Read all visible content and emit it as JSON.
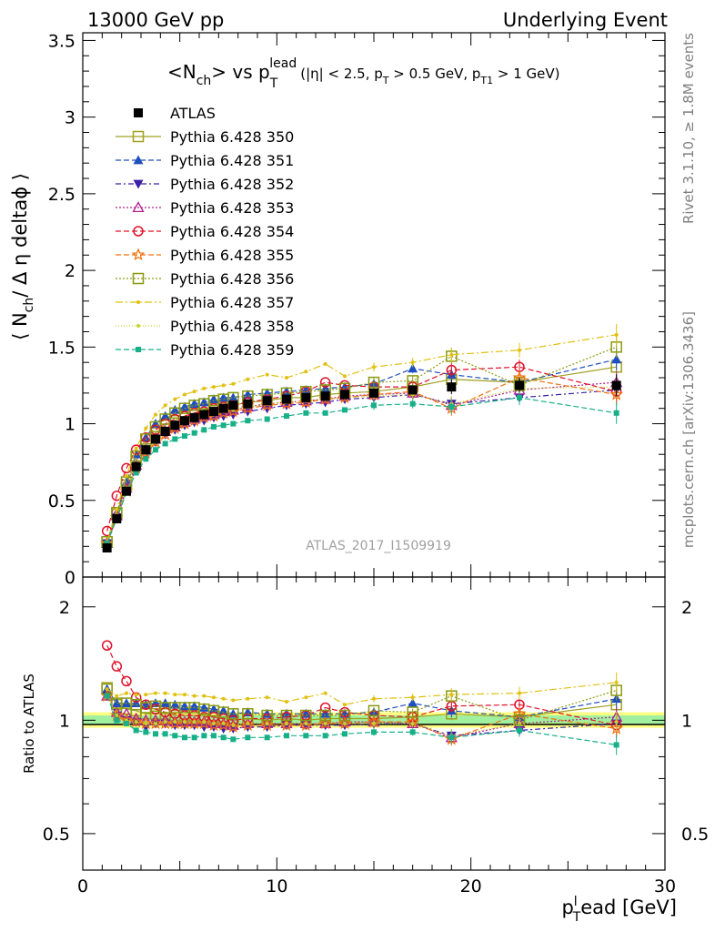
{
  "header": {
    "left": "13000 GeV pp",
    "right": "Underlying Event"
  },
  "side_labels": {
    "rivet": "Rivet 3.1.10, ≥ 1.8M events",
    "mcplots": "mcplots.cern.ch [arXiv:1306.3436]"
  },
  "watermark": "ATLAS_2017_I1509919",
  "chart_data": [
    {
      "type": "scatter",
      "panel": "main",
      "title": {
        "lhs": "<N",
        "lhs_sub": "ch",
        "mid": "> vs p",
        "sup": "lead",
        "sub": "T",
        "cuts_a": "(|η| < 2.5, p",
        "cuts_b_sub": "T",
        "cuts_c": " > 0.5 GeV, p",
        "cuts_d_sub": "T1",
        "cuts_e": " > 1 GeV)"
      },
      "ylabel": {
        "open": "⟨ N",
        "sub": "ch",
        "rest": "/ Δ η deltaϕ ⟩"
      },
      "xlim": [
        0,
        30
      ],
      "ylim": [
        0,
        3.55
      ],
      "yticks": [
        "0",
        "0.5",
        "1",
        "1.5",
        "2",
        "2.5",
        "3",
        "3.5"
      ],
      "legend_position": "top-left",
      "series": [
        {
          "name": "ATLAS",
          "color": "#000000",
          "marker": "square-filled",
          "dash": "none",
          "x": [
            1.25,
            1.75,
            2.25,
            2.75,
            3.25,
            3.75,
            4.25,
            4.75,
            5.25,
            5.75,
            6.25,
            6.75,
            7.25,
            7.75,
            8.5,
            9.5,
            10.5,
            11.5,
            12.5,
            13.5,
            15,
            17,
            19,
            22.5,
            27.5
          ],
          "y": [
            0.19,
            0.38,
            0.56,
            0.72,
            0.83,
            0.9,
            0.95,
            0.99,
            1.02,
            1.04,
            1.06,
            1.08,
            1.1,
            1.12,
            1.13,
            1.15,
            1.16,
            1.17,
            1.18,
            1.19,
            1.2,
            1.22,
            1.24,
            1.25,
            1.25
          ]
        },
        {
          "name": "Pythia 6.428 350",
          "color": "#a0a020",
          "marker": "square-open",
          "dash": "solid",
          "x": [
            1.25,
            1.75,
            2.25,
            2.75,
            3.25,
            3.75,
            4.25,
            4.75,
            5.25,
            5.75,
            6.25,
            6.75,
            7.25,
            7.75,
            8.5,
            9.5,
            10.5,
            11.5,
            12.5,
            13.5,
            15,
            17,
            19,
            22.5,
            27.5
          ],
          "y": [
            0.23,
            0.41,
            0.6,
            0.76,
            0.86,
            0.94,
            0.99,
            1.02,
            1.05,
            1.07,
            1.09,
            1.1,
            1.11,
            1.12,
            1.14,
            1.15,
            1.17,
            1.17,
            1.19,
            1.2,
            1.21,
            1.24,
            1.29,
            1.27,
            1.37
          ]
        },
        {
          "name": "Pythia 6.428 351",
          "color": "#1f4fbf",
          "marker": "triangle-up-filled",
          "dash": "6,3",
          "x": [
            1.25,
            1.75,
            2.25,
            2.75,
            3.25,
            3.75,
            4.25,
            4.75,
            5.25,
            5.75,
            6.25,
            6.75,
            7.25,
            7.75,
            8.5,
            9.5,
            10.5,
            11.5,
            12.5,
            13.5,
            15,
            17,
            19,
            22.5,
            27.5
          ],
          "y": [
            0.23,
            0.42,
            0.62,
            0.8,
            0.91,
            1.0,
            1.05,
            1.09,
            1.11,
            1.13,
            1.14,
            1.16,
            1.17,
            1.17,
            1.19,
            1.2,
            1.21,
            1.22,
            1.23,
            1.24,
            1.26,
            1.36,
            1.32,
            1.27,
            1.42
          ]
        },
        {
          "name": "Pythia 6.428 352",
          "color": "#3b1fa8",
          "marker": "triangle-down-filled",
          "dash": "6,3,2,3",
          "x": [
            1.25,
            1.75,
            2.25,
            2.75,
            3.25,
            3.75,
            4.25,
            4.75,
            5.25,
            5.75,
            6.25,
            6.75,
            7.25,
            7.75,
            8.5,
            9.5,
            10.5,
            11.5,
            12.5,
            13.5,
            15,
            17,
            19,
            22.5,
            27.5
          ],
          "y": [
            0.22,
            0.39,
            0.56,
            0.71,
            0.8,
            0.88,
            0.93,
            0.96,
            0.99,
            1.01,
            1.02,
            1.04,
            1.05,
            1.06,
            1.08,
            1.1,
            1.12,
            1.13,
            1.14,
            1.16,
            1.17,
            1.19,
            1.13,
            1.17,
            1.22
          ]
        },
        {
          "name": "Pythia 6.428 353",
          "color": "#b0208f",
          "marker": "triangle-up-open",
          "dash": "2,2",
          "x": [
            1.25,
            1.75,
            2.25,
            2.75,
            3.25,
            3.75,
            4.25,
            4.75,
            5.25,
            5.75,
            6.25,
            6.75,
            7.25,
            7.75,
            8.5,
            9.5,
            10.5,
            11.5,
            12.5,
            13.5,
            15,
            17,
            19,
            22.5,
            27.5
          ],
          "y": [
            0.22,
            0.4,
            0.58,
            0.73,
            0.83,
            0.9,
            0.95,
            0.98,
            1.01,
            1.03,
            1.05,
            1.06,
            1.08,
            1.09,
            1.11,
            1.13,
            1.14,
            1.15,
            1.16,
            1.18,
            1.19,
            1.2,
            1.12,
            1.22,
            1.27
          ]
        },
        {
          "name": "Pythia 6.428 354",
          "color": "#e0102a",
          "marker": "circle-open",
          "dash": "6,3",
          "x": [
            1.25,
            1.75,
            2.25,
            2.75,
            3.25,
            3.75,
            4.25,
            4.75,
            5.25,
            5.75,
            6.25,
            6.75,
            7.25,
            7.75,
            8.5,
            9.5,
            10.5,
            11.5,
            12.5,
            13.5,
            15,
            17,
            19,
            22.5,
            27.5
          ],
          "y": [
            0.3,
            0.53,
            0.71,
            0.83,
            0.91,
            0.96,
            1.0,
            1.03,
            1.05,
            1.07,
            1.08,
            1.1,
            1.11,
            1.12,
            1.14,
            1.16,
            1.18,
            1.21,
            1.27,
            1.25,
            1.24,
            1.24,
            1.35,
            1.37,
            1.21
          ]
        },
        {
          "name": "Pythia 6.428 355",
          "color": "#f07010",
          "marker": "star-open",
          "dash": "6,3",
          "x": [
            1.25,
            1.75,
            2.25,
            2.75,
            3.25,
            3.75,
            4.25,
            4.75,
            5.25,
            5.75,
            6.25,
            6.75,
            7.25,
            7.75,
            8.5,
            9.5,
            10.5,
            11.5,
            12.5,
            13.5,
            15,
            17,
            19,
            22.5,
            27.5
          ],
          "y": [
            0.22,
            0.39,
            0.56,
            0.71,
            0.81,
            0.88,
            0.93,
            0.97,
            1.0,
            1.02,
            1.04,
            1.05,
            1.07,
            1.08,
            1.1,
            1.12,
            1.13,
            1.14,
            1.16,
            1.17,
            1.19,
            1.21,
            1.1,
            1.3,
            1.19
          ]
        },
        {
          "name": "Pythia 6.428 356",
          "color": "#8a9a10",
          "marker": "square-open",
          "dash": "2,2",
          "x": [
            1.25,
            1.75,
            2.25,
            2.75,
            3.25,
            3.75,
            4.25,
            4.75,
            5.25,
            5.75,
            6.25,
            6.75,
            7.25,
            7.75,
            8.5,
            9.5,
            10.5,
            11.5,
            12.5,
            13.5,
            15,
            17,
            19,
            22.5,
            27.5
          ],
          "y": [
            0.23,
            0.42,
            0.62,
            0.79,
            0.9,
            0.98,
            1.03,
            1.07,
            1.1,
            1.12,
            1.13,
            1.15,
            1.16,
            1.17,
            1.18,
            1.19,
            1.2,
            1.21,
            1.22,
            1.23,
            1.27,
            1.28,
            1.44,
            1.25,
            1.5
          ]
        },
        {
          "name": "Pythia 6.428 357",
          "color": "#e0c010",
          "marker": "dot",
          "dash": "8,3,2,3",
          "x": [
            1.25,
            1.75,
            2.25,
            2.75,
            3.25,
            3.75,
            4.25,
            4.75,
            5.25,
            5.75,
            6.25,
            6.75,
            7.25,
            7.75,
            8.5,
            9.5,
            10.5,
            11.5,
            12.5,
            13.5,
            15,
            17,
            19,
            22.5,
            27.5
          ],
          "y": [
            0.23,
            0.44,
            0.66,
            0.84,
            0.97,
            1.06,
            1.12,
            1.16,
            1.19,
            1.21,
            1.23,
            1.24,
            1.25,
            1.26,
            1.29,
            1.32,
            1.3,
            1.34,
            1.39,
            1.31,
            1.37,
            1.4,
            1.45,
            1.48,
            1.58
          ]
        },
        {
          "name": "Pythia 6.428 358",
          "color": "#c8d030",
          "marker": "dot",
          "dash": "1,2",
          "x": [
            1.25,
            1.75,
            2.25,
            2.75,
            3.25,
            3.75,
            4.25,
            4.75,
            5.25,
            5.75,
            6.25,
            6.75,
            7.25,
            7.75,
            8.5,
            9.5,
            10.5,
            11.5,
            12.5,
            13.5,
            15,
            17,
            19,
            22.5,
            27.5
          ],
          "y": [
            0.22,
            0.39,
            0.56,
            0.71,
            0.81,
            0.88,
            0.94,
            0.98,
            1.01,
            1.03,
            1.05,
            1.06,
            1.08,
            1.09,
            1.11,
            1.13,
            1.14,
            1.15,
            1.16,
            1.17,
            1.18,
            1.19,
            1.13,
            1.23,
            1.24
          ]
        },
        {
          "name": "Pythia 6.428 359",
          "color": "#18b088",
          "marker": "square-small",
          "dash": "6,3",
          "x": [
            1.25,
            1.75,
            2.25,
            2.75,
            3.25,
            3.75,
            4.25,
            4.75,
            5.25,
            5.75,
            6.25,
            6.75,
            7.25,
            7.75,
            8.5,
            9.5,
            10.5,
            11.5,
            12.5,
            13.5,
            15,
            17,
            19,
            22.5,
            27.5
          ],
          "y": [
            0.22,
            0.38,
            0.55,
            0.68,
            0.77,
            0.83,
            0.87,
            0.9,
            0.92,
            0.94,
            0.96,
            0.98,
            0.99,
            1.0,
            1.02,
            1.03,
            1.05,
            1.07,
            1.07,
            1.09,
            1.12,
            1.13,
            1.11,
            1.17,
            1.07
          ]
        }
      ]
    },
    {
      "type": "scatter",
      "panel": "ratio",
      "ylabel": "Ratio to ATLAS",
      "xlabel": {
        "main": "p",
        "sub": "T",
        "sup": "l",
        "rest": "ead [GeV]"
      },
      "xlim": [
        0,
        30
      ],
      "xticks": [
        "0",
        "10",
        "20",
        "30"
      ],
      "ylim": [
        0.4,
        2.4
      ],
      "log_y": true,
      "yticks": [
        "0.5",
        "1",
        "2"
      ],
      "ratio_series": [
        {
          "name": "Pythia 6.428 350",
          "y": [
            1.22,
            1.1,
            1.07,
            1.06,
            1.04,
            1.04,
            1.04,
            1.03,
            1.03,
            1.03,
            1.03,
            1.02,
            1.01,
            1.0,
            1.01,
            1.0,
            1.01,
            1.0,
            1.01,
            1.01,
            1.01,
            1.02,
            1.04,
            1.02,
            1.1
          ]
        },
        {
          "name": "Pythia 6.428 351",
          "y": [
            1.21,
            1.11,
            1.11,
            1.11,
            1.1,
            1.11,
            1.11,
            1.1,
            1.09,
            1.09,
            1.08,
            1.07,
            1.06,
            1.04,
            1.05,
            1.04,
            1.04,
            1.04,
            1.04,
            1.04,
            1.05,
            1.11,
            1.06,
            1.02,
            1.14
          ]
        },
        {
          "name": "Pythia 6.428 352",
          "y": [
            1.16,
            1.03,
            1.0,
            0.99,
            0.96,
            0.98,
            0.98,
            0.97,
            0.97,
            0.97,
            0.96,
            0.96,
            0.95,
            0.95,
            0.96,
            0.96,
            0.97,
            0.97,
            0.97,
            0.97,
            0.98,
            0.98,
            0.91,
            0.94,
            0.98
          ]
        },
        {
          "name": "Pythia 6.428 353",
          "y": [
            1.16,
            1.05,
            1.04,
            1.01,
            1.0,
            1.0,
            1.0,
            0.99,
            0.99,
            0.99,
            0.99,
            0.98,
            0.98,
            0.97,
            0.98,
            0.98,
            0.98,
            0.98,
            0.98,
            0.99,
            0.99,
            0.98,
            0.9,
            0.98,
            1.02
          ]
        },
        {
          "name": "Pythia 6.428 354",
          "y": [
            1.58,
            1.39,
            1.27,
            1.15,
            1.1,
            1.07,
            1.05,
            1.04,
            1.03,
            1.03,
            1.02,
            1.02,
            1.01,
            1.0,
            1.01,
            1.01,
            1.02,
            1.03,
            1.08,
            1.05,
            1.03,
            1.02,
            1.09,
            1.1,
            0.97
          ]
        },
        {
          "name": "Pythia 6.428 355",
          "y": [
            1.16,
            1.03,
            1.0,
            0.99,
            0.98,
            0.98,
            0.98,
            0.98,
            0.98,
            0.98,
            0.98,
            0.97,
            0.97,
            0.96,
            0.97,
            0.97,
            0.97,
            0.97,
            0.98,
            0.98,
            0.99,
            0.99,
            0.89,
            1.04,
            0.95
          ]
        },
        {
          "name": "Pythia 6.428 356",
          "y": [
            1.21,
            1.11,
            1.11,
            1.1,
            1.08,
            1.09,
            1.08,
            1.08,
            1.08,
            1.08,
            1.07,
            1.06,
            1.05,
            1.04,
            1.04,
            1.03,
            1.03,
            1.03,
            1.03,
            1.03,
            1.06,
            1.05,
            1.16,
            1.0,
            1.2
          ]
        },
        {
          "name": "Pythia 6.428 357",
          "y": [
            1.21,
            1.16,
            1.18,
            1.17,
            1.17,
            1.18,
            1.18,
            1.17,
            1.17,
            1.16,
            1.16,
            1.15,
            1.14,
            1.13,
            1.14,
            1.15,
            1.12,
            1.15,
            1.18,
            1.1,
            1.14,
            1.15,
            1.17,
            1.18,
            1.26
          ]
        },
        {
          "name": "Pythia 6.428 358",
          "y": [
            1.16,
            1.03,
            1.0,
            0.99,
            0.98,
            0.98,
            0.99,
            0.99,
            0.99,
            0.99,
            0.99,
            0.98,
            0.98,
            0.97,
            0.98,
            0.98,
            0.98,
            0.98,
            0.98,
            0.98,
            0.98,
            0.98,
            0.91,
            0.98,
            0.99
          ]
        },
        {
          "name": "Pythia 6.428 359",
          "y": [
            1.16,
            1.0,
            0.98,
            0.94,
            0.93,
            0.92,
            0.92,
            0.91,
            0.9,
            0.9,
            0.91,
            0.91,
            0.9,
            0.89,
            0.9,
            0.9,
            0.91,
            0.91,
            0.91,
            0.92,
            0.93,
            0.93,
            0.9,
            0.94,
            0.86
          ]
        }
      ]
    }
  ]
}
